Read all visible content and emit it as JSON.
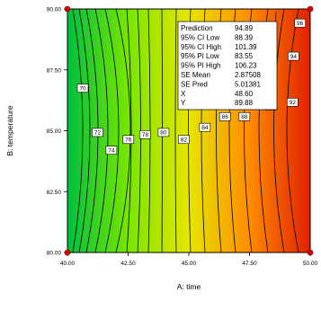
{
  "chart_data": {
    "type": "contour",
    "xlabel": "A: time",
    "ylabel": "B: temperature",
    "xlim": [
      40.0,
      50.0
    ],
    "ylim": [
      80.0,
      90.0
    ],
    "x_ticks": [
      "40.00",
      "42.50",
      "45.00",
      "47.50",
      "50.00"
    ],
    "y_ticks": [
      "80.00",
      "82.50",
      "85.00",
      "87.50",
      "90.00"
    ],
    "colorscale": [
      "#00c040",
      "#78e600",
      "#e6e600",
      "#ff8c00",
      "#e02000"
    ],
    "contour_labels": [
      {
        "text": "70",
        "x": 40.63,
        "y": 86.75
      },
      {
        "text": "72",
        "x": 41.24,
        "y": 84.93
      },
      {
        "text": "74",
        "x": 41.81,
        "y": 84.2
      },
      {
        "text": "76",
        "x": 42.51,
        "y": 84.64
      },
      {
        "text": "78",
        "x": 43.2,
        "y": 84.84
      },
      {
        "text": "80",
        "x": 43.96,
        "y": 84.93
      },
      {
        "text": "82",
        "x": 44.79,
        "y": 84.64
      },
      {
        "text": "84",
        "x": 45.66,
        "y": 85.14
      },
      {
        "text": "86",
        "x": 46.49,
        "y": 85.58
      },
      {
        "text": "88",
        "x": 47.29,
        "y": 85.58
      },
      {
        "text": "90",
        "x": 48.36,
        "y": 86.02
      },
      {
        "text": "92",
        "x": 49.27,
        "y": 86.17
      },
      {
        "text": "94",
        "x": 49.31,
        "y": 88.06
      },
      {
        "text": "96",
        "x": 49.58,
        "y": 89.42
      }
    ],
    "design_points": [
      {
        "x": 40.0,
        "y": 90.0
      },
      {
        "x": 50.0,
        "y": 90.0
      },
      {
        "x": 40.0,
        "y": 80.0
      },
      {
        "x": 50.0,
        "y": 80.0
      }
    ],
    "tooltip": {
      "x": 48.6,
      "y": 89.88,
      "rows": [
        {
          "label": "Prediction",
          "value": "94.89"
        },
        {
          "label": "95% CI Low",
          "value": "88.39"
        },
        {
          "label": "95% CI High",
          "value": "101.39"
        },
        {
          "label": "95% PI Low",
          "value": "83.55"
        },
        {
          "label": "95% PI High",
          "value": "106.23"
        },
        {
          "label": "SE Mean",
          "value": "2.87508"
        },
        {
          "label": "SE Pred",
          "value": "5.01381"
        },
        {
          "label": "X",
          "value": "48.60"
        },
        {
          "label": "Y",
          "value": "89.88"
        }
      ]
    }
  }
}
